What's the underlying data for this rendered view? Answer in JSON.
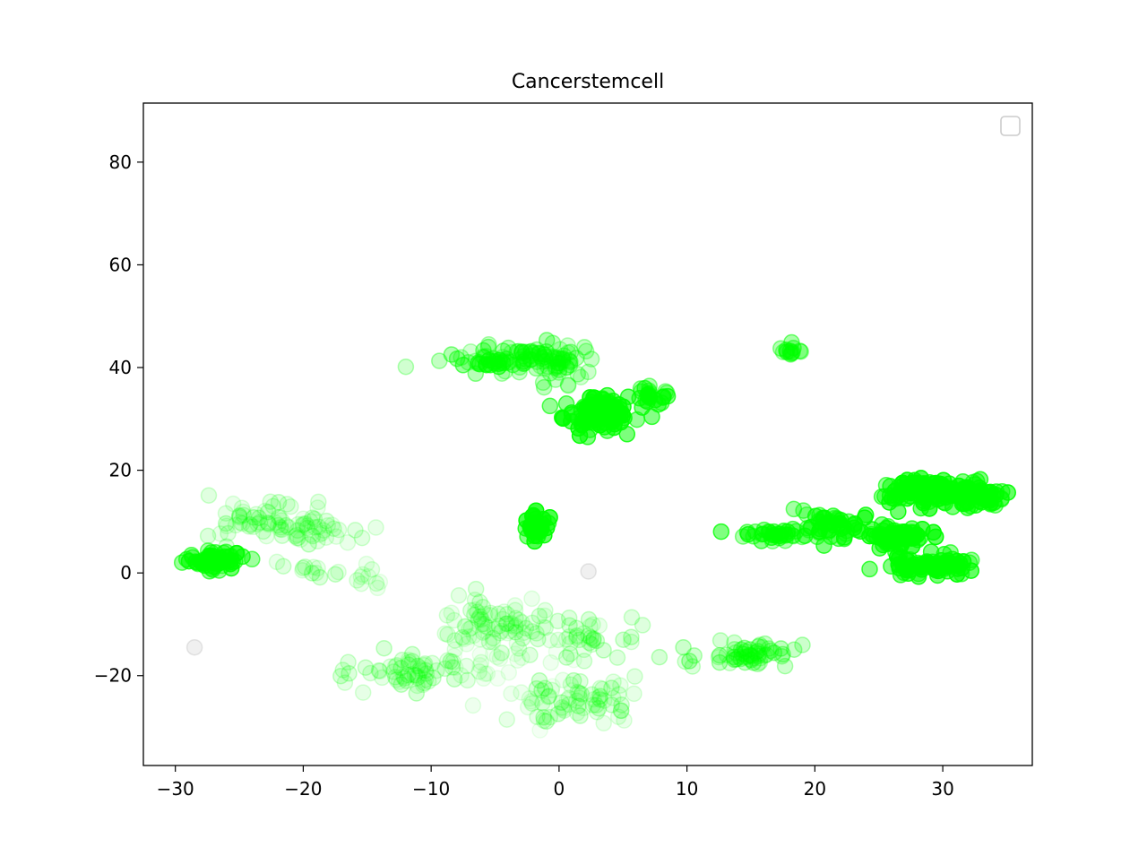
{
  "chart_data": {
    "type": "scatter",
    "title": "Cancerstemcell",
    "xlabel": "",
    "ylabel": "",
    "xlim": [
      -32.5,
      37.0
    ],
    "ylim": [
      -37.5,
      91.5
    ],
    "xticks": [
      -30,
      -20,
      -10,
      0,
      10,
      20,
      30
    ],
    "yticks": [
      -20,
      0,
      20,
      40,
      60,
      80
    ],
    "xtick_labels": [
      "−30",
      "−20",
      "−10",
      "0",
      "10",
      "20",
      "30"
    ],
    "ytick_labels": [
      "−20",
      "0",
      "20",
      "40",
      "60",
      "80"
    ],
    "grid": false,
    "legend": {
      "placement": "top-right",
      "entries": []
    },
    "marker": {
      "shape": "circle",
      "color": "#00ff00",
      "background_color": "#808080"
    },
    "clusters": [
      {
        "cx": -27,
        "cy": 2.5,
        "sx": 1.2,
        "sy": 0.9,
        "n": 60,
        "alpha": 0.45
      },
      {
        "cx": -24,
        "cy": 10,
        "sx": 2.2,
        "sy": 2.0,
        "n": 45,
        "alpha": 0.12
      },
      {
        "cx": -20,
        "cy": 9,
        "sx": 1.6,
        "sy": 2.0,
        "n": 30,
        "alpha": 0.1
      },
      {
        "cx": -17.5,
        "cy": 8.5,
        "sx": 1.2,
        "sy": 1.5,
        "n": 12,
        "alpha": 0.1
      },
      {
        "cx": -19.5,
        "cy": 0.5,
        "sx": 1.0,
        "sy": 0.8,
        "n": 12,
        "alpha": 0.12
      },
      {
        "cx": -15,
        "cy": -0.5,
        "sx": 1.0,
        "sy": 1.0,
        "n": 10,
        "alpha": 0.08
      },
      {
        "cx": -3.5,
        "cy": 42,
        "sx": 2.5,
        "sy": 1.2,
        "n": 70,
        "alpha": 0.25
      },
      {
        "cx": -6,
        "cy": 40.5,
        "sx": 0.7,
        "sy": 1.0,
        "n": 14,
        "alpha": 0.4
      },
      {
        "cx": 0,
        "cy": 40,
        "sx": 1.3,
        "sy": 2.5,
        "n": 40,
        "alpha": 0.22
      },
      {
        "cx": 3,
        "cy": 31,
        "sx": 1.3,
        "sy": 1.5,
        "n": 110,
        "alpha": 0.55
      },
      {
        "cx": 7,
        "cy": 35,
        "sx": 0.9,
        "sy": 1.2,
        "n": 25,
        "alpha": 0.4
      },
      {
        "cx": 18,
        "cy": 43,
        "sx": 0.7,
        "sy": 0.6,
        "n": 14,
        "alpha": 0.3
      },
      {
        "cx": -2,
        "cy": 9,
        "sx": 0.5,
        "sy": 1.6,
        "n": 35,
        "alpha": 0.6
      },
      {
        "cx": 29,
        "cy": 16,
        "sx": 2.2,
        "sy": 1.2,
        "n": 140,
        "alpha": 0.55
      },
      {
        "cx": 33,
        "cy": 15,
        "sx": 0.9,
        "sy": 1.0,
        "n": 40,
        "alpha": 0.5
      },
      {
        "cx": 26.5,
        "cy": 7,
        "sx": 1.3,
        "sy": 0.9,
        "n": 70,
        "alpha": 0.55
      },
      {
        "cx": 29,
        "cy": 1.5,
        "sx": 1.5,
        "sy": 1.0,
        "n": 80,
        "alpha": 0.55
      },
      {
        "cx": 21.5,
        "cy": 9,
        "sx": 1.5,
        "sy": 1.4,
        "n": 50,
        "alpha": 0.45
      },
      {
        "cx": 17,
        "cy": 7.5,
        "sx": 1.3,
        "sy": 0.6,
        "n": 35,
        "alpha": 0.4
      },
      {
        "cx": -5,
        "cy": -10,
        "sx": 2.6,
        "sy": 2.5,
        "n": 70,
        "alpha": 0.1
      },
      {
        "cx": -11,
        "cy": -19,
        "sx": 2.3,
        "sy": 1.8,
        "n": 60,
        "alpha": 0.12
      },
      {
        "cx": 1.5,
        "cy": -12,
        "sx": 2.3,
        "sy": 2.0,
        "n": 40,
        "alpha": 0.12
      },
      {
        "cx": 1.5,
        "cy": -25,
        "sx": 2.3,
        "sy": 2.5,
        "n": 60,
        "alpha": 0.12
      },
      {
        "cx": -3,
        "cy": -20,
        "sx": 2.8,
        "sy": 4.0,
        "n": 40,
        "alpha": 0.06
      },
      {
        "cx": 15,
        "cy": -16,
        "sx": 1.6,
        "sy": 1.0,
        "n": 50,
        "alpha": 0.2
      },
      {
        "cx": 10,
        "cy": -16,
        "sx": 1.2,
        "sy": 1.5,
        "n": 8,
        "alpha": 0.18
      }
    ],
    "background_points": [
      {
        "x": -28.5,
        "y": -14.5
      },
      {
        "x": 2.3,
        "y": 0.3
      }
    ]
  }
}
